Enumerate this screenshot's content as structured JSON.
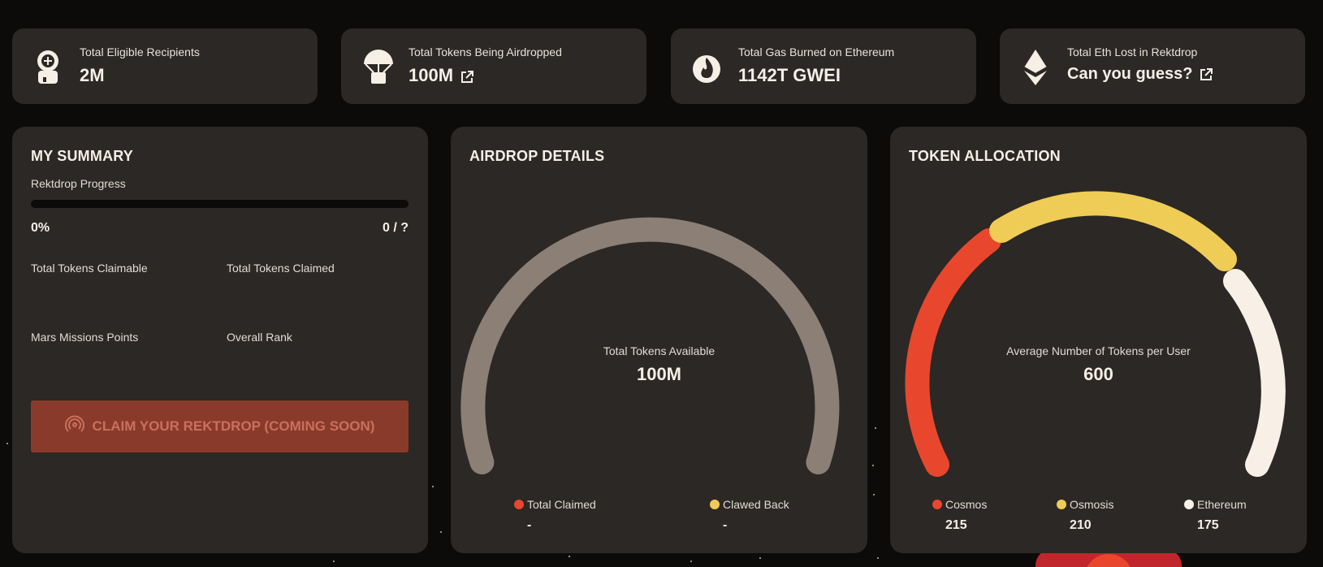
{
  "colors": {
    "background": "#0c0b0a",
    "card": "#2b2825",
    "accent_red": "#e8472e",
    "accent_yellow": "#efcc55",
    "gray_arc": "#8b7f76",
    "white_arc": "#f8f0e6"
  },
  "stats": [
    {
      "label": "Total Eligible Recipients",
      "value": "2M",
      "icon": "astronaut-icon"
    },
    {
      "label": "Total Tokens Being Airdropped",
      "value": "100M",
      "icon": "parachute-icon"
    },
    {
      "label": "Total Gas Burned on Ethereum",
      "value": "1142T GWEI",
      "icon": "flame-icon"
    },
    {
      "label": "Total Eth Lost in Rektdrop",
      "value": "Can you guess?",
      "icon": "ethereum-icon"
    }
  ],
  "summary": {
    "title": "MY SUMMARY",
    "progress_label": "Rektdrop Progress",
    "progress_fraction": 0,
    "progress_percent": "0%",
    "progress_count": "0 / ?",
    "claimable_label": "Total Tokens Claimable",
    "claimed_label": "Total Tokens Claimed",
    "points_label": "Mars Missions Points",
    "rank_label": "Overall Rank",
    "claim_button": "CLAIM YOUR REKTDROP (COMING SOON)"
  },
  "airdrop": {
    "title": "AIRDROP DETAILS",
    "center_caption": "Total Tokens Available",
    "center_value": "100M",
    "legend": [
      {
        "label": "Total Claimed",
        "value": "-",
        "color": "#e8472e"
      },
      {
        "label": "Clawed Back",
        "value": "-",
        "color": "#efcc55"
      }
    ]
  },
  "allocation": {
    "title": "TOKEN ALLOCATION",
    "center_caption": "Average Number of Tokens per User",
    "center_value": "600",
    "legend": [
      {
        "label": "Cosmos",
        "value": "215",
        "color": "#e8472e"
      },
      {
        "label": "Osmosis",
        "value": "210",
        "color": "#efcc55"
      },
      {
        "label": "Ethereum",
        "value": "175",
        "color": "#f8f0e6"
      }
    ]
  }
}
